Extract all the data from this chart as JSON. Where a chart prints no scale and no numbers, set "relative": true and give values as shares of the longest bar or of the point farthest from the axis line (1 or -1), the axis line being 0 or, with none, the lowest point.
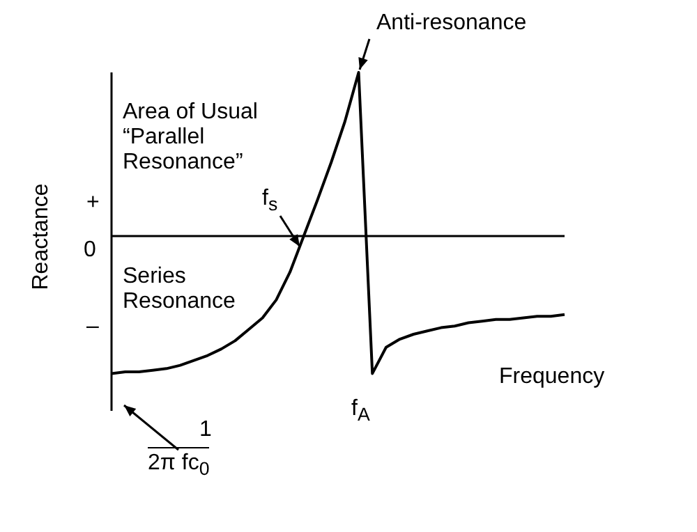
{
  "chart_data": {
    "type": "line",
    "relative": true,
    "xlabel": "Frequency",
    "ylabel": "Reactance",
    "legend": false,
    "marker": "none",
    "line_style": "solid",
    "categories": [
      null,
      null,
      null,
      null,
      null,
      null,
      null,
      null,
      null,
      null,
      null,
      null,
      null,
      null,
      null,
      null,
      null,
      null,
      null,
      null,
      null,
      null,
      null,
      null,
      null,
      null,
      null,
      null,
      null,
      null,
      null,
      null,
      null,
      null
    ],
    "series": [
      {
        "color": "#000000",
        "values": [
          -0.84,
          -0.83,
          -0.83,
          -0.82,
          -0.81,
          -0.79,
          -0.76,
          -0.73,
          -0.69,
          -0.64,
          -0.57,
          -0.5,
          -0.39,
          -0.22,
          0,
          0.22,
          0.45,
          0.7,
          1,
          -0.84,
          -0.68,
          -0.63,
          -0.6,
          -0.58,
          -0.56,
          -0.55,
          -0.53,
          -0.52,
          -0.51,
          -0.51,
          -0.5,
          -0.49,
          -0.49,
          -0.48
        ]
      }
    ],
    "annotations": [
      "Anti-resonance",
      "Area of Usual “Parallel Resonance”",
      "f$_{s}$",
      "Series Resonance",
      "f$_{A}$",
      "1",
      "2π fc$_{0}$",
      "+",
      "0",
      "–"
    ]
  }
}
